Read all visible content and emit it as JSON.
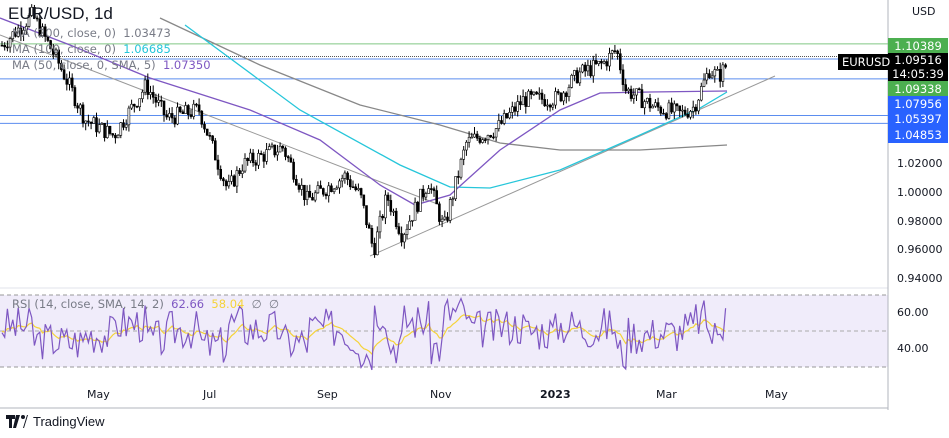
{
  "header": {
    "title": "EUR/USD, 1d",
    "currency": "USD"
  },
  "legends": {
    "ma200": {
      "label": "MA (200, close, 0)",
      "value": "1.03473",
      "color": "#888888"
    },
    "ma100": {
      "label": "MA (100, close, 0)",
      "value": "1.06685",
      "color": "#26c6da"
    },
    "ma50": {
      "label": "MA (50, close, 0, SMA, 5)",
      "value": "1.07350",
      "color": "#7e57c2"
    },
    "rsi": {
      "label": "RSI (14, close, SMA, 14, 2)",
      "value": "62.66",
      "sma": "58.04",
      "extra1": "∅",
      "extra2": "∅"
    }
  },
  "price_labels": [
    {
      "value": "1.10389",
      "color": "#4caf50"
    },
    {
      "value": "1.09338",
      "color": "#4caf50"
    },
    {
      "value": "1.07956",
      "color": "#2962ff"
    },
    {
      "value": "1.05397",
      "color": "#2962ff"
    },
    {
      "value": "1.04853",
      "color": "#2962ff"
    }
  ],
  "current": {
    "symbol": "EURUSD",
    "price": "1.09516",
    "countdown": "14:05:39"
  },
  "price_axis": [
    "1.02000",
    "1.00000",
    "0.98000",
    "0.96000",
    "0.94000"
  ],
  "rsi_axis": [
    "60.00",
    "40.00"
  ],
  "time_axis": [
    "May",
    "Jul",
    "Sep",
    "Nov",
    "2023",
    "Mar",
    "May"
  ],
  "brand": "TradingView",
  "chart_data": {
    "type": "candlestick",
    "symbol": "EUR/USD",
    "interval": "1d",
    "approx_close_path": [
      [
        "2022-03-15",
        1.103
      ],
      [
        "2022-03-31",
        1.124
      ],
      [
        "2022-04-13",
        1.093
      ],
      [
        "2022-04-28",
        1.051
      ],
      [
        "2022-05-13",
        1.04
      ],
      [
        "2022-05-30",
        1.075
      ],
      [
        "2022-06-10",
        1.052
      ],
      [
        "2022-06-27",
        1.058
      ],
      [
        "2022-07-12",
        1.002
      ],
      [
        "2022-07-20",
        1.02
      ],
      [
        "2022-08-10",
        1.032
      ],
      [
        "2022-08-23",
        0.995
      ],
      [
        "2022-09-12",
        1.012
      ],
      [
        "2022-09-20",
        0.998
      ],
      [
        "2022-09-27",
        0.96
      ],
      [
        "2022-10-04",
        0.998
      ],
      [
        "2022-10-12",
        0.971
      ],
      [
        "2022-10-26",
        1.008
      ],
      [
        "2022-11-03",
        0.975
      ],
      [
        "2022-11-15",
        1.035
      ],
      [
        "2022-12-01",
        1.045
      ],
      [
        "2022-12-15",
        1.065
      ],
      [
        "2023-01-02",
        1.066
      ],
      [
        "2023-01-13",
        1.083
      ],
      [
        "2023-01-26",
        1.09
      ],
      [
        "2023-02-02",
        1.1
      ],
      [
        "2023-02-07",
        1.072
      ],
      [
        "2023-02-22",
        1.06
      ],
      [
        "2023-03-08",
        1.055
      ],
      [
        "2023-03-15",
        1.06
      ],
      [
        "2023-03-23",
        1.086
      ],
      [
        "2023-03-28",
        1.081
      ],
      [
        "2023-04-04",
        1.095
      ]
    ],
    "horizontal_levels": [
      1.10389,
      1.09338,
      1.07956,
      1.05397,
      1.04853
    ],
    "ylim": [
      0.93,
      1.13
    ],
    "rsi": {
      "levels": [
        70,
        50,
        30
      ],
      "last": 62.66,
      "sma_last": 58.04
    }
  }
}
